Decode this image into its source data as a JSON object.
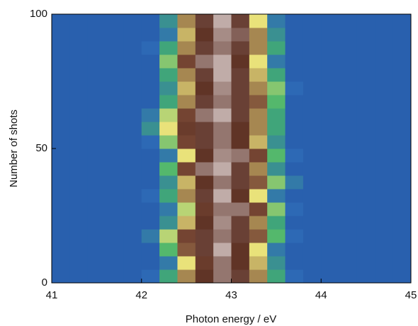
{
  "chart_data": {
    "type": "heatmap",
    "xlabel": "Photon energy / eV",
    "ylabel": "Number of shots",
    "xlim": [
      41,
      45
    ],
    "xticks": [
      41,
      42,
      43,
      44,
      45
    ],
    "ylim": [
      0,
      100
    ],
    "yticks": [
      0,
      50,
      100
    ],
    "x": [
      41,
      41.2,
      41.4,
      41.6,
      41.8,
      42,
      42.2,
      42.4,
      42.6,
      42.8,
      43,
      43.2,
      43.4,
      43.6,
      43.8,
      44,
      44.2,
      44.4,
      44.6,
      44.8,
      45
    ],
    "y": [
      0,
      5,
      10,
      15,
      20,
      25,
      30,
      35,
      40,
      45,
      50,
      55,
      60,
      65,
      70,
      75,
      80,
      85,
      90,
      95,
      100
    ],
    "zlim": [
      0,
      1
    ],
    "colors": [
      "#1f4d9e",
      "#2f6cb8",
      "#44b36a",
      "#e9e27a",
      "#7a4a36",
      "#5a2e22",
      "#ece2e2"
    ],
    "z": [
      [
        0.1,
        0.1,
        0.1,
        0.1,
        0.1,
        0.15,
        0.3,
        0.6,
        0.8,
        0.9,
        0.85,
        0.6,
        0.3,
        0.15,
        0.1,
        0.1,
        0.1,
        0.1,
        0.1,
        0.1
      ],
      [
        0.1,
        0.1,
        0.1,
        0.1,
        0.1,
        0.1,
        0.2,
        0.5,
        0.75,
        0.9,
        0.8,
        0.55,
        0.25,
        0.1,
        0.1,
        0.1,
        0.1,
        0.1,
        0.1,
        0.1
      ],
      [
        0.1,
        0.1,
        0.1,
        0.1,
        0.1,
        0.1,
        0.35,
        0.65,
        0.85,
        0.95,
        0.8,
        0.5,
        0.2,
        0.1,
        0.1,
        0.1,
        0.1,
        0.1,
        0.1,
        0.1
      ],
      [
        0.1,
        0.1,
        0.1,
        0.1,
        0.1,
        0.2,
        0.45,
        0.7,
        0.85,
        0.9,
        0.85,
        0.65,
        0.35,
        0.15,
        0.1,
        0.1,
        0.1,
        0.1,
        0.1,
        0.1
      ],
      [
        0.1,
        0.1,
        0.1,
        0.1,
        0.1,
        0.1,
        0.25,
        0.55,
        0.8,
        0.92,
        0.85,
        0.6,
        0.3,
        0.1,
        0.1,
        0.1,
        0.1,
        0.1,
        0.1,
        0.1
      ],
      [
        0.1,
        0.1,
        0.1,
        0.1,
        0.1,
        0.1,
        0.2,
        0.45,
        0.75,
        0.9,
        0.9,
        0.7,
        0.4,
        0.15,
        0.1,
        0.1,
        0.1,
        0.1,
        0.1,
        0.1
      ],
      [
        0.1,
        0.1,
        0.1,
        0.1,
        0.1,
        0.15,
        0.3,
        0.6,
        0.85,
        0.95,
        0.8,
        0.5,
        0.2,
        0.1,
        0.1,
        0.1,
        0.1,
        0.1,
        0.1,
        0.1
      ],
      [
        0.1,
        0.1,
        0.1,
        0.1,
        0.1,
        0.1,
        0.25,
        0.55,
        0.8,
        0.9,
        0.85,
        0.65,
        0.4,
        0.2,
        0.1,
        0.1,
        0.1,
        0.1,
        0.1,
        0.1
      ],
      [
        0.1,
        0.1,
        0.1,
        0.1,
        0.1,
        0.1,
        0.35,
        0.7,
        0.9,
        0.95,
        0.85,
        0.6,
        0.25,
        0.1,
        0.1,
        0.1,
        0.1,
        0.1,
        0.1,
        0.1
      ],
      [
        0.1,
        0.1,
        0.1,
        0.1,
        0.1,
        0.1,
        0.2,
        0.5,
        0.8,
        0.92,
        0.9,
        0.7,
        0.35,
        0.15,
        0.1,
        0.1,
        0.1,
        0.1,
        0.1,
        0.1
      ],
      [
        0.1,
        0.1,
        0.1,
        0.1,
        0.1,
        0.15,
        0.4,
        0.7,
        0.85,
        0.9,
        0.8,
        0.55,
        0.25,
        0.1,
        0.1,
        0.1,
        0.1,
        0.1,
        0.1,
        0.1
      ],
      [
        0.1,
        0.1,
        0.1,
        0.1,
        0.1,
        0.25,
        0.5,
        0.75,
        0.85,
        0.9,
        0.8,
        0.6,
        0.3,
        0.1,
        0.1,
        0.1,
        0.1,
        0.1,
        0.1,
        0.1
      ],
      [
        0.1,
        0.1,
        0.1,
        0.1,
        0.1,
        0.2,
        0.45,
        0.7,
        0.9,
        0.95,
        0.85,
        0.6,
        0.3,
        0.1,
        0.1,
        0.1,
        0.1,
        0.1,
        0.1,
        0.1
      ],
      [
        0.1,
        0.1,
        0.1,
        0.1,
        0.1,
        0.1,
        0.3,
        0.6,
        0.85,
        0.9,
        0.85,
        0.65,
        0.35,
        0.1,
        0.1,
        0.1,
        0.1,
        0.1,
        0.1,
        0.1
      ],
      [
        0.1,
        0.1,
        0.1,
        0.1,
        0.1,
        0.1,
        0.25,
        0.55,
        0.8,
        0.92,
        0.85,
        0.6,
        0.4,
        0.15,
        0.1,
        0.1,
        0.1,
        0.1,
        0.1,
        0.1
      ],
      [
        0.1,
        0.1,
        0.1,
        0.1,
        0.1,
        0.1,
        0.3,
        0.6,
        0.85,
        0.95,
        0.85,
        0.55,
        0.3,
        0.1,
        0.1,
        0.1,
        0.1,
        0.1,
        0.1,
        0.1
      ],
      [
        0.1,
        0.1,
        0.1,
        0.1,
        0.1,
        0.1,
        0.4,
        0.7,
        0.9,
        0.95,
        0.8,
        0.5,
        0.2,
        0.1,
        0.1,
        0.1,
        0.1,
        0.1,
        0.1,
        0.1
      ],
      [
        0.1,
        0.1,
        0.1,
        0.1,
        0.1,
        0.15,
        0.3,
        0.6,
        0.85,
        0.9,
        0.85,
        0.6,
        0.3,
        0.1,
        0.1,
        0.1,
        0.1,
        0.1,
        0.1,
        0.1
      ],
      [
        0.1,
        0.1,
        0.1,
        0.1,
        0.1,
        0.1,
        0.2,
        0.55,
        0.8,
        0.92,
        0.88,
        0.6,
        0.25,
        0.1,
        0.1,
        0.1,
        0.1,
        0.1,
        0.1,
        0.1
      ],
      [
        0.1,
        0.1,
        0.1,
        0.1,
        0.1,
        0.1,
        0.25,
        0.6,
        0.85,
        0.95,
        0.85,
        0.5,
        0.2,
        0.1,
        0.1,
        0.1,
        0.1,
        0.1,
        0.1,
        0.1
      ]
    ]
  }
}
